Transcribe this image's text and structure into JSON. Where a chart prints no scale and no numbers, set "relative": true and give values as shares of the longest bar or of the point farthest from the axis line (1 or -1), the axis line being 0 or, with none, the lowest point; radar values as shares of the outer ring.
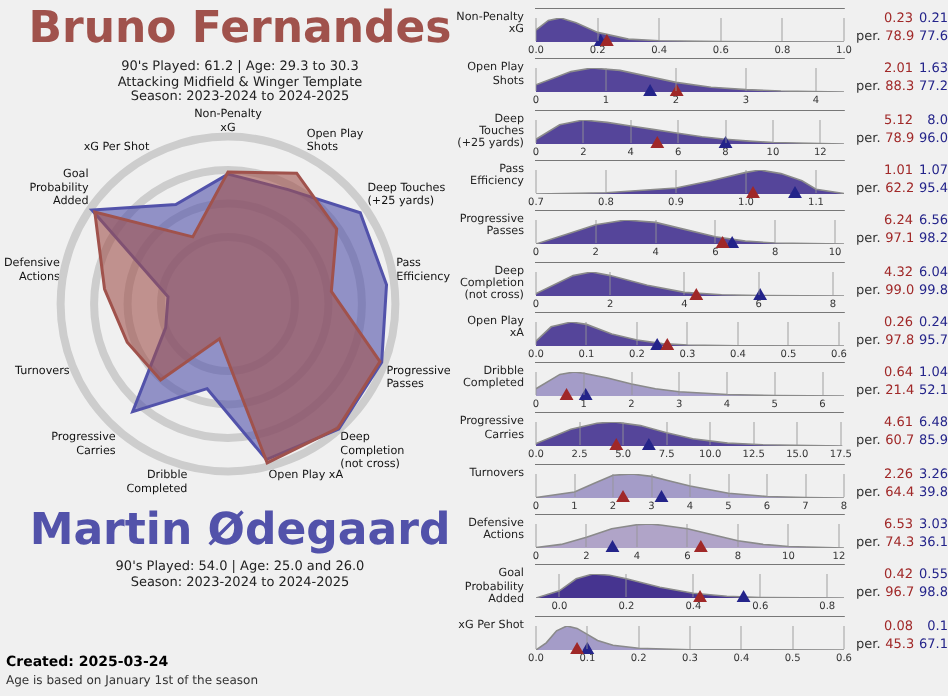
{
  "chart_data": [
    {
      "type": "radar",
      "relative": true,
      "subtitle": "90's Played: 61.2 | Age: 29.3 to 30.3\nAttacking Midfield & Winger Template\nSeason: 2023-2024 to 2024-2025",
      "annotations": [
        "90's Played: 54.0 | Age: 25.0 and 26.0\nSeason: 2023-2024 to 2024-2025",
        "Created: 2025-03-24",
        "Age is based on January 1st of the season"
      ],
      "categories": [
        "Non-Penalty xG",
        "Open Play Shots",
        "Deep Touches (+25 yards)",
        "Pass Efficiency",
        "Progressive Passes",
        "Deep Completion (not cross)",
        "Open Play xA",
        "Dribble Completed",
        "Progressive Carries",
        "Turnovers",
        "Defensive Actions",
        "Goal Probability Added",
        "xG Per Shot"
      ],
      "grid": true,
      "series": [
        {
          "name": "Bruno Fernandes",
          "color": "#a0524c",
          "values": [
            0.789,
            0.883,
            0.789,
            0.622,
            0.971,
            0.99,
            0.978,
            0.214,
            0.607,
            0.644,
            0.743,
            0.967,
            0.453
          ]
        },
        {
          "name": "Martin Ødegaard",
          "color": "#5252aa",
          "values": [
            0.776,
            0.772,
            0.96,
            0.954,
            0.982,
            0.998,
            0.957,
            0.521,
            0.859,
            0.398,
            0.361,
            0.988,
            0.671
          ]
        }
      ]
    },
    {
      "type": "area",
      "title": "Non-Penalty xG",
      "relative": true,
      "grid": "x",
      "xlim": [
        0,
        1
      ],
      "xticks": [
        {
          "value": 0,
          "label": "0.0"
        },
        0.2,
        0.4,
        0.6,
        0.8,
        {
          "value": 1,
          "label": "1.0"
        }
      ],
      "annotations": [
        "0.23",
        "0.21",
        "per.",
        "78.9",
        "77.6"
      ],
      "series": [
        {
          "color": "#55459a",
          "x": [
            0,
            0.04,
            0.08,
            0.13,
            0.2,
            0.3,
            0.4,
            0.6,
            0.8,
            1
          ],
          "values": [
            0.5,
            0.9,
            1,
            0.8,
            0.4,
            0.12,
            0.05,
            0.02,
            0.01,
            0
          ]
        },
        {
          "type": "scatter",
          "marker": "triangle",
          "color": "#a02828",
          "x": [
            0.23
          ],
          "values": [
            0
          ]
        },
        {
          "type": "scatter",
          "marker": "triangle",
          "color": "#24248a",
          "x": [
            0.21
          ],
          "values": [
            0
          ]
        }
      ]
    },
    {
      "type": "area",
      "title": "Open Play Shots",
      "relative": true,
      "grid": "x",
      "xlim": [
        0,
        4.4
      ],
      "xticks": [
        0,
        1,
        2,
        3,
        4
      ],
      "annotations": [
        "2.01",
        "1.63",
        "per.",
        "88.3",
        "77.2"
      ],
      "series": [
        {
          "color": "#55459a",
          "x": [
            0,
            0.5,
            0.8,
            1.2,
            1.6,
            2,
            2.5,
            3,
            3.5,
            4.4
          ],
          "values": [
            0.3,
            0.85,
            1,
            0.9,
            0.65,
            0.4,
            0.2,
            0.1,
            0.04,
            0
          ]
        },
        {
          "type": "scatter",
          "marker": "triangle",
          "color": "#a02828",
          "x": [
            2.01
          ],
          "values": [
            0
          ]
        },
        {
          "type": "scatter",
          "marker": "triangle",
          "color": "#24248a",
          "x": [
            1.63
          ],
          "values": [
            0
          ]
        }
      ]
    },
    {
      "type": "area",
      "title": "Deep Touches (+25 yards)",
      "relative": true,
      "grid": "x",
      "xlim": [
        0,
        13
      ],
      "xticks": [
        0,
        2,
        4,
        6,
        8,
        10,
        12
      ],
      "annotations": [
        "5.12",
        "8.0",
        "per.",
        "78.9",
        "96.0"
      ],
      "series": [
        {
          "color": "#55459a",
          "x": [
            0,
            1,
            2,
            3,
            4,
            5,
            6,
            7,
            8,
            9,
            10,
            13
          ],
          "values": [
            0.2,
            0.8,
            1,
            0.9,
            0.75,
            0.6,
            0.45,
            0.3,
            0.2,
            0.12,
            0.06,
            0
          ]
        },
        {
          "type": "scatter",
          "marker": "triangle",
          "color": "#a02828",
          "x": [
            5.12
          ],
          "values": [
            0
          ]
        },
        {
          "type": "scatter",
          "marker": "triangle",
          "color": "#24248a",
          "x": [
            8.0
          ],
          "values": [
            0
          ]
        }
      ]
    },
    {
      "type": "area",
      "title": "Pass Efficiency",
      "relative": true,
      "grid": "x",
      "xlim": [
        0.7,
        1.14
      ],
      "xticks": [
        0.7,
        0.8,
        0.9,
        {
          "value": 1,
          "label": "1.0"
        },
        1.1
      ],
      "annotations": [
        "1.01",
        "1.07",
        "per.",
        "62.2",
        "95.4"
      ],
      "series": [
        {
          "color": "#55459a",
          "x": [
            0.7,
            0.8,
            0.9,
            0.95,
            1.0,
            1.02,
            1.05,
            1.08,
            1.1,
            1.14
          ],
          "values": [
            0,
            0.05,
            0.25,
            0.55,
            0.9,
            1,
            0.85,
            0.55,
            0.2,
            0.02
          ]
        },
        {
          "type": "scatter",
          "marker": "triangle",
          "color": "#a02828",
          "x": [
            1.01
          ],
          "values": [
            0
          ]
        },
        {
          "type": "scatter",
          "marker": "triangle",
          "color": "#24248a",
          "x": [
            1.07
          ],
          "values": [
            0
          ]
        }
      ]
    },
    {
      "type": "area",
      "title": "Progressive Passes",
      "relative": true,
      "grid": "x",
      "xlim": [
        0,
        10.3
      ],
      "xticks": [
        0,
        2,
        4,
        6,
        8,
        10
      ],
      "annotations": [
        "6.24",
        "6.56",
        "per.",
        "97.1",
        "98.2"
      ],
      "series": [
        {
          "color": "#55459a",
          "x": [
            0,
            1,
            2,
            3,
            4,
            5,
            6,
            7,
            8,
            10.3
          ],
          "values": [
            0,
            0.4,
            0.8,
            1,
            0.9,
            0.6,
            0.3,
            0.12,
            0.04,
            0
          ]
        },
        {
          "type": "scatter",
          "marker": "triangle",
          "color": "#a02828",
          "x": [
            6.24
          ],
          "values": [
            0
          ]
        },
        {
          "type": "scatter",
          "marker": "triangle",
          "color": "#24248a",
          "x": [
            6.56
          ],
          "values": [
            0
          ]
        }
      ]
    },
    {
      "type": "area",
      "title": "Deep Completion (not cross)",
      "relative": true,
      "grid": "x",
      "xlim": [
        0,
        8.3
      ],
      "xticks": [
        0,
        2,
        4,
        6,
        8
      ],
      "annotations": [
        "4.32",
        "6.04",
        "per.",
        "99.0",
        "99.8"
      ],
      "series": [
        {
          "color": "#55459a",
          "x": [
            0,
            1,
            1.5,
            2,
            3,
            4,
            5,
            6,
            8.3
          ],
          "values": [
            0.1,
            0.85,
            1,
            0.85,
            0.45,
            0.15,
            0.05,
            0.02,
            0
          ]
        },
        {
          "type": "scatter",
          "marker": "triangle",
          "color": "#a02828",
          "x": [
            4.32
          ],
          "values": [
            0
          ]
        },
        {
          "type": "scatter",
          "marker": "triangle",
          "color": "#24248a",
          "x": [
            6.04
          ],
          "values": [
            0
          ]
        }
      ]
    },
    {
      "type": "area",
      "title": "Open Play xA",
      "relative": true,
      "grid": "x",
      "xlim": [
        0,
        0.61
      ],
      "xticks": [
        {
          "value": 0,
          "label": "0.0"
        },
        0.1,
        0.2,
        0.3,
        0.4,
        0.5,
        0.6
      ],
      "annotations": [
        "0.26",
        "0.24",
        "per.",
        "97.8",
        "95.7"
      ],
      "series": [
        {
          "color": "#55459a",
          "x": [
            0,
            0.03,
            0.07,
            0.1,
            0.15,
            0.2,
            0.25,
            0.3,
            0.4,
            0.61
          ],
          "values": [
            0.2,
            0.8,
            1,
            0.9,
            0.5,
            0.25,
            0.1,
            0.04,
            0.01,
            0
          ]
        },
        {
          "type": "scatter",
          "marker": "triangle",
          "color": "#a02828",
          "x": [
            0.26
          ],
          "values": [
            0
          ]
        },
        {
          "type": "scatter",
          "marker": "triangle",
          "color": "#24248a",
          "x": [
            0.24
          ],
          "values": [
            0
          ]
        }
      ]
    },
    {
      "type": "area",
      "title": "Dribble Completed",
      "relative": true,
      "grid": "x",
      "xlim": [
        0,
        6.45
      ],
      "xticks": [
        0,
        1,
        2,
        3,
        4,
        5,
        6
      ],
      "annotations": [
        "0.64",
        "1.04",
        "per.",
        "21.4",
        "52.1"
      ],
      "series": [
        {
          "color": "#a49cc8",
          "x": [
            0,
            0.5,
            0.8,
            1,
            1.5,
            2,
            2.5,
            3,
            4,
            5,
            6.45
          ],
          "values": [
            0.3,
            0.9,
            1,
            0.95,
            0.75,
            0.5,
            0.3,
            0.18,
            0.06,
            0.02,
            0
          ]
        },
        {
          "type": "scatter",
          "marker": "triangle",
          "color": "#a02828",
          "x": [
            0.64
          ],
          "values": [
            0
          ]
        },
        {
          "type": "scatter",
          "marker": "triangle",
          "color": "#24248a",
          "x": [
            1.04
          ],
          "values": [
            0
          ]
        }
      ]
    },
    {
      "type": "area",
      "title": "Progressive Carries",
      "relative": true,
      "grid": "x",
      "xlim": [
        0,
        17.6
      ],
      "xticks": [
        {
          "value": 0,
          "label": "0.0"
        },
        2.5,
        {
          "value": 5,
          "label": "5.0"
        },
        7.5,
        {
          "value": 10,
          "label": "10.0"
        },
        12.5,
        {
          "value": 15,
          "label": "15.0"
        },
        17.5
      ],
      "annotations": [
        "4.61",
        "6.48",
        "per.",
        "60.7",
        "85.9"
      ],
      "series": [
        {
          "color": "#55459a",
          "x": [
            0,
            2,
            3.5,
            4.5,
            6,
            7.5,
            9,
            11,
            13,
            17.6
          ],
          "values": [
            0.1,
            0.7,
            0.95,
            1,
            0.85,
            0.55,
            0.3,
            0.12,
            0.05,
            0
          ]
        },
        {
          "type": "scatter",
          "marker": "triangle",
          "color": "#a02828",
          "x": [
            4.61
          ],
          "values": [
            0
          ]
        },
        {
          "type": "scatter",
          "marker": "triangle",
          "color": "#24248a",
          "x": [
            6.48
          ],
          "values": [
            0
          ]
        }
      ]
    },
    {
      "type": "area",
      "title": "Turnovers",
      "relative": true,
      "grid": "x",
      "xlim": [
        0,
        8
      ],
      "xticks": [
        0,
        1,
        2,
        3,
        4,
        5,
        6,
        7,
        8
      ],
      "annotations": [
        "2.26",
        "3.26",
        "per.",
        "64.4",
        "39.8"
      ],
      "series": [
        {
          "color": "#a49cc8",
          "x": [
            0,
            1,
            1.5,
            2,
            2.5,
            3,
            3.5,
            4,
            5,
            6,
            7,
            8
          ],
          "values": [
            0.02,
            0.25,
            0.6,
            0.95,
            1,
            0.9,
            0.7,
            0.5,
            0.2,
            0.06,
            0.02,
            0
          ]
        },
        {
          "type": "scatter",
          "marker": "triangle",
          "color": "#a02828",
          "x": [
            2.26
          ],
          "values": [
            0
          ]
        },
        {
          "type": "scatter",
          "marker": "triangle",
          "color": "#24248a",
          "x": [
            3.26
          ],
          "values": [
            0
          ]
        }
      ]
    },
    {
      "type": "area",
      "title": "Defensive Actions",
      "relative": true,
      "grid": "x",
      "xlim": [
        0,
        12.2
      ],
      "xticks": [
        0,
        2,
        4,
        6,
        8,
        10,
        12
      ],
      "annotations": [
        "6.53",
        "3.03",
        "per.",
        "74.3",
        "36.1"
      ],
      "series": [
        {
          "color": "#b0a4c8",
          "x": [
            0,
            1,
            2,
            3,
            4,
            4.5,
            5,
            6,
            7,
            8,
            9,
            10,
            12.2
          ],
          "values": [
            0.02,
            0.15,
            0.45,
            0.8,
            0.97,
            1,
            0.95,
            0.8,
            0.55,
            0.3,
            0.15,
            0.06,
            0
          ]
        },
        {
          "type": "scatter",
          "marker": "triangle",
          "color": "#a02828",
          "x": [
            6.53
          ],
          "values": [
            0
          ]
        },
        {
          "type": "scatter",
          "marker": "triangle",
          "color": "#24248a",
          "x": [
            3.03
          ],
          "values": [
            0
          ]
        }
      ]
    },
    {
      "type": "area",
      "title": "Goal Probability Added",
      "relative": true,
      "grid": "x",
      "xlim": [
        -0.07,
        0.85
      ],
      "xticks": [
        {
          "value": 0,
          "label": "0.0"
        },
        0.2,
        0.4,
        0.6,
        0.8
      ],
      "annotations": [
        "0.42",
        "0.55",
        "per.",
        "96.7",
        "98.8"
      ],
      "series": [
        {
          "color": "#463490",
          "x": [
            -0.07,
            0,
            0.05,
            0.1,
            0.15,
            0.2,
            0.3,
            0.4,
            0.5,
            0.6,
            0.85
          ],
          "values": [
            0,
            0.3,
            0.8,
            1,
            0.95,
            0.8,
            0.45,
            0.2,
            0.07,
            0.02,
            0
          ]
        },
        {
          "type": "scatter",
          "marker": "triangle",
          "color": "#a02828",
          "x": [
            0.42
          ],
          "values": [
            0
          ]
        },
        {
          "type": "scatter",
          "marker": "triangle",
          "color": "#24248a",
          "x": [
            0.55
          ],
          "values": [
            0
          ]
        }
      ]
    },
    {
      "type": "area",
      "title": "xG Per Shot",
      "relative": true,
      "grid": "x",
      "xlim": [
        0,
        0.6
      ],
      "xticks": [
        {
          "value": 0,
          "label": "0.0"
        },
        0.1,
        0.2,
        0.3,
        0.4,
        0.5,
        0.6
      ],
      "annotations": [
        "0.08",
        "0.1",
        "per.",
        "45.3",
        "67.1"
      ],
      "series": [
        {
          "color": "#a49cc8",
          "x": [
            0,
            0.02,
            0.04,
            0.06,
            0.08,
            0.1,
            0.12,
            0.15,
            0.2,
            0.3,
            0.6
          ],
          "values": [
            0,
            0.3,
            0.8,
            1,
            0.9,
            0.65,
            0.4,
            0.2,
            0.07,
            0.01,
            0
          ]
        },
        {
          "type": "scatter",
          "marker": "triangle",
          "color": "#a02828",
          "x": [
            0.08
          ],
          "values": [
            0
          ]
        },
        {
          "type": "scatter",
          "marker": "triangle",
          "color": "#24248a",
          "x": [
            0.1
          ],
          "values": [
            0
          ]
        }
      ]
    }
  ]
}
